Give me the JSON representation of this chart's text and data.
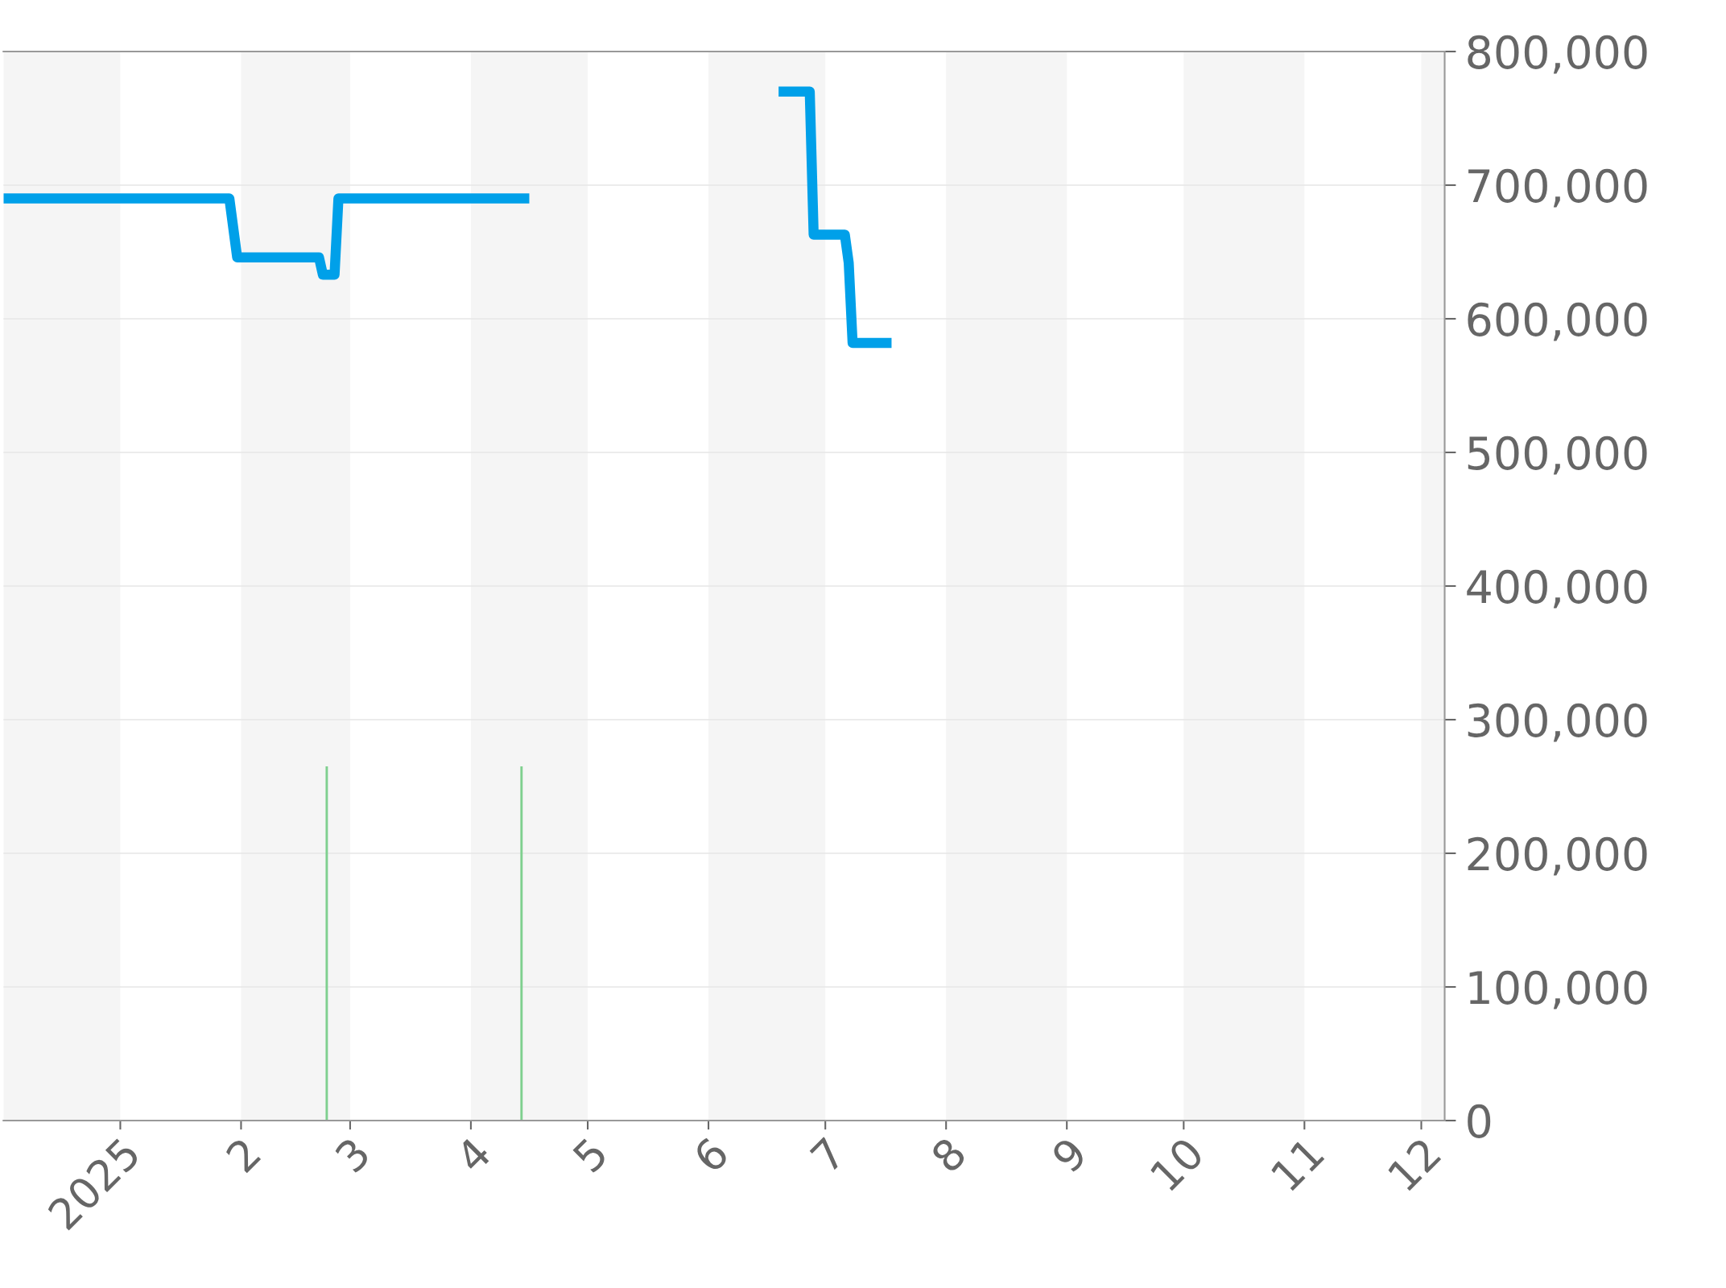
{
  "chart_data": {
    "type": "line",
    "xlim": [
      "2024-12-02",
      "2025-12-07"
    ],
    "ylim": [
      0,
      800000
    ],
    "xticks": [
      {
        "value": "2025-01-01",
        "label": "2025"
      },
      {
        "value": "2025-02-01",
        "label": "2"
      },
      {
        "value": "2025-03-01",
        "label": "3"
      },
      {
        "value": "2025-04-01",
        "label": "4"
      },
      {
        "value": "2025-05-01",
        "label": "5"
      },
      {
        "value": "2025-06-01",
        "label": "6"
      },
      {
        "value": "2025-07-01",
        "label": "7"
      },
      {
        "value": "2025-08-01",
        "label": "8"
      },
      {
        "value": "2025-09-01",
        "label": "9"
      },
      {
        "value": "2025-10-01",
        "label": "10"
      },
      {
        "value": "2025-11-01",
        "label": "11"
      },
      {
        "value": "2025-12-01",
        "label": "12"
      }
    ],
    "yticks": [
      {
        "value": 0,
        "label": "0"
      },
      {
        "value": 100000,
        "label": "100,000"
      },
      {
        "value": 200000,
        "label": "200,000"
      },
      {
        "value": 300000,
        "label": "300,000"
      },
      {
        "value": 400000,
        "label": "400,000"
      },
      {
        "value": 500000,
        "label": "500,000"
      },
      {
        "value": 600000,
        "label": "600,000"
      },
      {
        "value": 700000,
        "label": "700,000"
      },
      {
        "value": 800000,
        "label": "800,000"
      }
    ],
    "grid": "y",
    "legend": false,
    "bands": [
      {
        "axis": "x",
        "from": "2024-12-02",
        "to": "2025-01-01",
        "color": "#f5f5f5"
      },
      {
        "axis": "x",
        "from": "2025-02-01",
        "to": "2025-03-01",
        "color": "#f5f5f5"
      },
      {
        "axis": "x",
        "from": "2025-04-01",
        "to": "2025-05-01",
        "color": "#f5f5f5"
      },
      {
        "axis": "x",
        "from": "2025-06-01",
        "to": "2025-07-01",
        "color": "#f5f5f5"
      },
      {
        "axis": "x",
        "from": "2025-08-01",
        "to": "2025-09-01",
        "color": "#f5f5f5"
      },
      {
        "axis": "x",
        "from": "2025-10-01",
        "to": "2025-11-01",
        "color": "#f5f5f5"
      },
      {
        "axis": "x",
        "from": "2025-12-01",
        "to": "2025-12-07",
        "color": "#f5f5f5"
      }
    ],
    "series": [
      {
        "type": "bar",
        "color": "#7fd08f",
        "x": [
          "2025-02-23",
          "2025-04-14"
        ],
        "values": [
          265000,
          265000
        ]
      },
      {
        "color": "#00a0e9",
        "x": [
          "2024-12-02",
          "2025-01-29",
          "2025-01-31",
          "2025-02-21",
          "2025-02-22",
          "2025-02-25",
          "2025-02-26",
          "2025-04-16",
          "2025-05-15",
          "2025-06-19",
          "2025-06-27",
          "2025-06-28",
          "2025-07-06",
          "2025-07-07",
          "2025-07-08",
          "2025-07-18"
        ],
        "values": [
          690000,
          690000,
          646000,
          646000,
          633000,
          633000,
          690000,
          690000,
          null,
          770000,
          770000,
          663000,
          663000,
          642000,
          582000,
          582000
        ]
      }
    ]
  }
}
